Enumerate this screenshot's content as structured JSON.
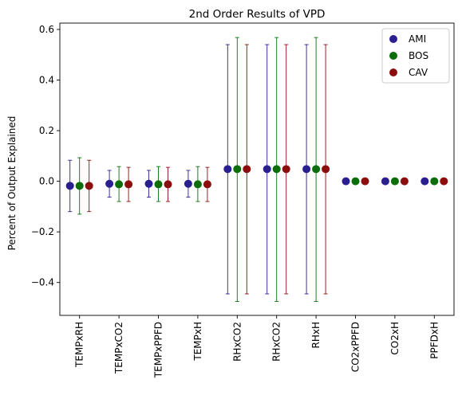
{
  "chart_data": {
    "type": "scatter",
    "title": "2nd Order Results of VPD",
    "xlabel": "",
    "ylabel": "Percent of Output Explained",
    "categories": [
      "TEMPxRH",
      "TEMPxCO2",
      "TEMPxPPFD",
      "TEMPxH",
      "RHxCO2",
      "RHxCO2",
      "RHxH",
      "CO2xPPFD",
      "CO2xH",
      "PPFDxH"
    ],
    "ylim": [
      -0.53,
      0.625
    ],
    "yticks": [
      -0.4,
      -0.2,
      0.0,
      0.2,
      0.4,
      0.6
    ],
    "ytick_labels": [
      "−0.4",
      "−0.2",
      "0.0",
      "0.2",
      "0.4",
      "0.6"
    ],
    "grid": false,
    "legend_position": "top-right",
    "series": [
      {
        "name": "AMI",
        "color": "#2a1f8f",
        "values": [
          -0.018,
          -0.01,
          -0.01,
          -0.01,
          0.048,
          0.048,
          0.048,
          0.0,
          0.0,
          0.0
        ],
        "err_low": [
          -0.12,
          -0.063,
          -0.063,
          -0.063,
          -0.445,
          -0.445,
          -0.445,
          0.0,
          0.0,
          0.0
        ],
        "err_high": [
          0.083,
          0.043,
          0.043,
          0.043,
          0.54,
          0.54,
          0.54,
          0.0,
          0.0,
          0.0
        ]
      },
      {
        "name": "BOS",
        "color": "#0b6e0b",
        "values": [
          -0.018,
          -0.012,
          -0.012,
          -0.012,
          0.048,
          0.048,
          0.048,
          0.0,
          0.0,
          0.0
        ],
        "err_low": [
          -0.13,
          -0.08,
          -0.08,
          -0.08,
          -0.475,
          -0.475,
          -0.475,
          0.0,
          0.0,
          0.0
        ],
        "err_high": [
          0.093,
          0.058,
          0.058,
          0.058,
          0.568,
          0.568,
          0.568,
          0.0,
          0.0,
          0.0
        ]
      },
      {
        "name": "CAV",
        "color": "#8b0d0d",
        "values": [
          -0.018,
          -0.012,
          -0.012,
          -0.012,
          0.048,
          0.048,
          0.048,
          0.0,
          0.0,
          0.0
        ],
        "err_low": [
          -0.12,
          -0.08,
          -0.08,
          -0.08,
          -0.445,
          -0.445,
          -0.445,
          0.0,
          0.0,
          0.0
        ],
        "err_high": [
          0.083,
          0.055,
          0.055,
          0.055,
          0.54,
          0.54,
          0.54,
          0.0,
          0.0,
          0.0
        ]
      }
    ]
  }
}
